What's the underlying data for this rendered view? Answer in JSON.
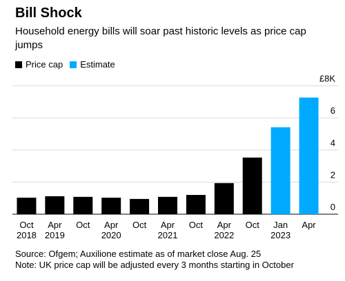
{
  "chart_data": {
    "type": "bar",
    "title": "Bill Shock",
    "subtitle": "Household energy bills will soar past historic levels as price cap jumps",
    "categories": [
      "Oct\n2018",
      "Apr\n2019",
      "Oct",
      "Apr\n2020",
      "Oct",
      "Apr\n2021",
      "Oct",
      "Apr\n2022",
      "Oct",
      "Jan\n2023",
      "Apr"
    ],
    "series": [
      {
        "name": "Price cap",
        "color": "#000000",
        "values": [
          1.03,
          1.12,
          1.08,
          1.03,
          0.95,
          1.08,
          1.2,
          1.94,
          3.53,
          null,
          null
        ]
      },
      {
        "name": "Estimate",
        "color": "#00aaff",
        "values": [
          null,
          null,
          null,
          null,
          null,
          null,
          null,
          null,
          null,
          5.42,
          7.27
        ]
      }
    ],
    "ylim": [
      0,
      8.5
    ],
    "yticks": [
      0,
      2,
      4,
      6,
      {
        "value": 8,
        "label": "£8K"
      }
    ],
    "grid": true,
    "legend": "top-left",
    "source": "Source: Ofgem; Auxilione estimate as of market close Aug. 25",
    "note": "Note: UK price cap will be adjusted every 3 months starting in October"
  }
}
